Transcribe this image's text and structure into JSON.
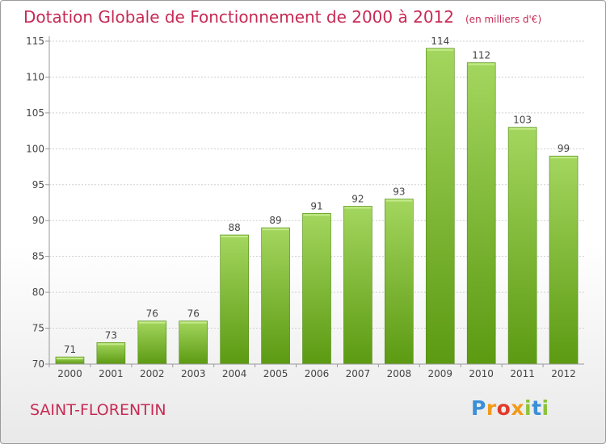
{
  "header": {
    "title": "Dotation Globale de Fonctionnement de 2000 à 2012",
    "subtitle": "(en milliers d'€)"
  },
  "footer": {
    "commune": "SAINT-FLORENTIN",
    "logo_parts": [
      "P",
      "r",
      "o",
      "x",
      "i",
      "t",
      "i"
    ]
  },
  "colors": {
    "title": "#c72a54",
    "bar_top": "#9ed158",
    "bar_bottom": "#5e9c14",
    "grid": "#cccccc",
    "axis": "#999999"
  },
  "chart_data": {
    "type": "bar",
    "title": "Dotation Globale de Fonctionnement de 2000 à 2012",
    "subtitle": "(en milliers d'€)",
    "categories": [
      "2000",
      "2001",
      "2002",
      "2003",
      "2004",
      "2005",
      "2006",
      "2007",
      "2008",
      "2009",
      "2010",
      "2011",
      "2012"
    ],
    "values": [
      71,
      73,
      76,
      76,
      88,
      89,
      91,
      92,
      93,
      114,
      112,
      103,
      99
    ],
    "data_labels": [
      "71",
      "73",
      "76",
      "76",
      "88",
      "89",
      "91",
      "92",
      "93",
      "114",
      "112",
      "103",
      "99"
    ],
    "ylim": [
      70,
      115
    ],
    "yticks": [
      70,
      75,
      80,
      85,
      90,
      95,
      100,
      105,
      110,
      115
    ],
    "ytick_labels": [
      "70",
      "75",
      "80",
      "85",
      "90",
      "95",
      "100",
      "105",
      "110",
      "115"
    ],
    "grid": true,
    "xlabel": "",
    "ylabel": ""
  }
}
